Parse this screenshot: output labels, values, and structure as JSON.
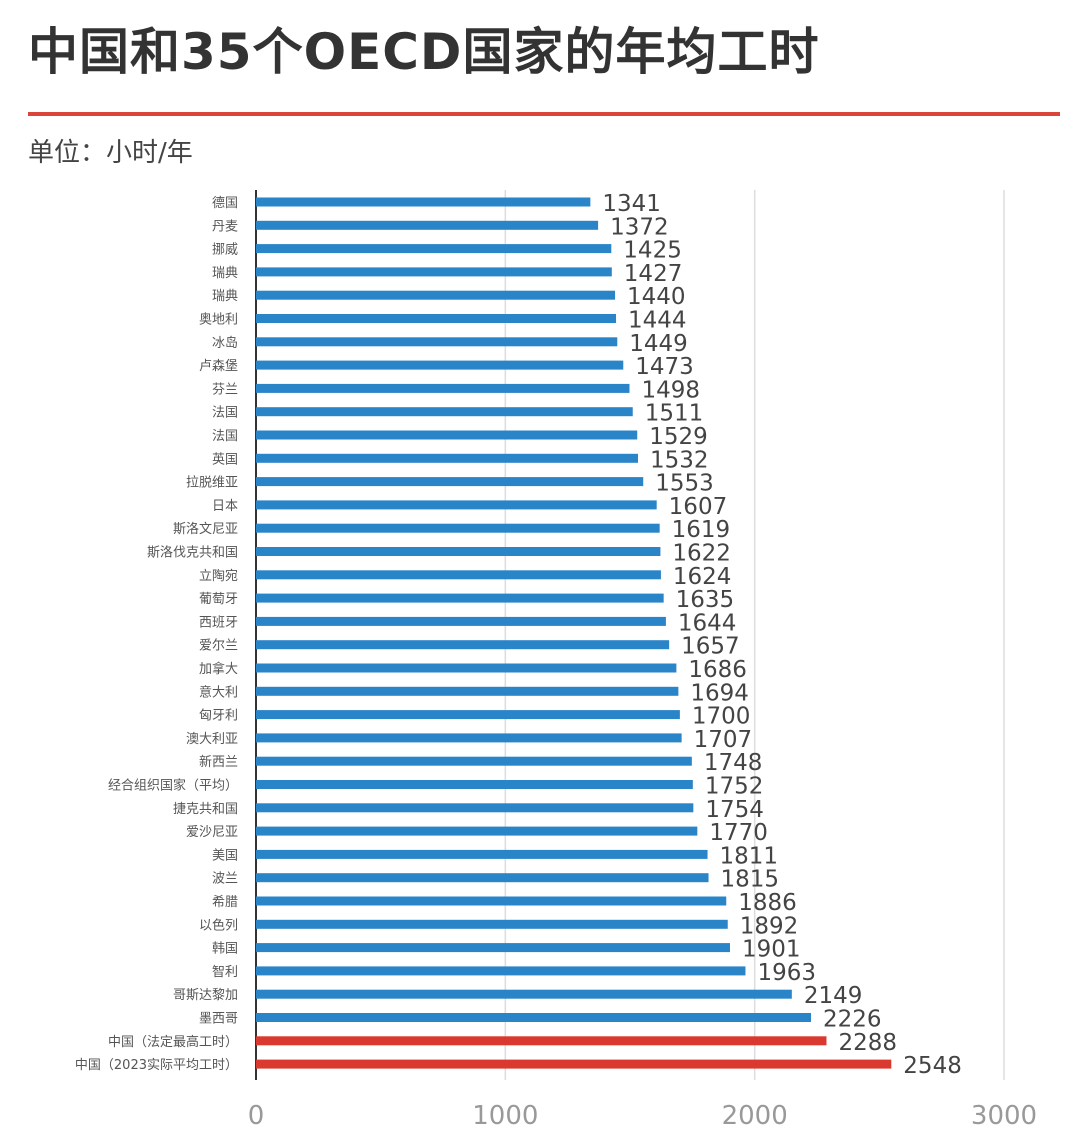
{
  "header": {
    "title": "中国和35个OECD国家的年均工时",
    "unit": "单位：小时/年"
  },
  "colors": {
    "rule": "#d9453a",
    "bar_default": "#2a84c8",
    "bar_highlight": "#d9392e",
    "gridline": "#dddddd",
    "axis": "#333333"
  },
  "chart_data": {
    "type": "bar",
    "orientation": "horizontal",
    "categories": [
      "德国",
      "丹麦",
      "挪威",
      "瑞典",
      "瑞典",
      "奥地利",
      "冰岛",
      "卢森堡",
      "芬兰",
      "法国",
      "法国",
      "英国",
      "拉脱维亚",
      "日本",
      "斯洛文尼亚",
      "斯洛伐克共和国",
      "立陶宛",
      "葡萄牙",
      "西班牙",
      "爱尔兰",
      "加拿大",
      "意大利",
      "匈牙利",
      "澳大利亚",
      "新西兰",
      "经合组织国家（平均）",
      "捷克共和国",
      "爱沙尼亚",
      "美国",
      "波兰",
      "希腊",
      "以色列",
      "韩国",
      "智利",
      "哥斯达黎加",
      "墨西哥",
      "中国（法定最高工时）",
      "中国（2023实际平均工时）"
    ],
    "values": [
      1341,
      1372,
      1425,
      1427,
      1440,
      1444,
      1449,
      1473,
      1498,
      1511,
      1529,
      1532,
      1553,
      1607,
      1619,
      1622,
      1624,
      1635,
      1644,
      1657,
      1686,
      1694,
      1700,
      1707,
      1748,
      1752,
      1754,
      1770,
      1811,
      1815,
      1886,
      1892,
      1901,
      1963,
      2149,
      2226,
      2288,
      2548
    ],
    "value_labels": [
      "1341",
      "1372",
      "1425",
      "1427",
      "1440",
      "1444",
      "1449",
      "1473",
      "1498",
      "1511",
      "1529",
      "1532",
      "1553",
      "1607",
      "1619",
      "1622",
      "1624",
      "1635",
      "1644",
      "1657",
      "1686",
      "1694",
      "1700",
      "1707",
      "1748",
      "1752",
      "1754",
      "1770",
      "1811",
      "1815",
      "1886",
      "1892",
      "1901",
      "1963",
      "2149",
      "2226",
      "2288",
      "2548"
    ],
    "highlight_indices": [
      36,
      37
    ],
    "xlim": [
      0,
      3000
    ],
    "xticks": [
      0,
      1000,
      2000,
      3000
    ],
    "xtick_labels": [
      "0",
      "1000",
      "2000",
      "3000"
    ],
    "grid": true
  }
}
